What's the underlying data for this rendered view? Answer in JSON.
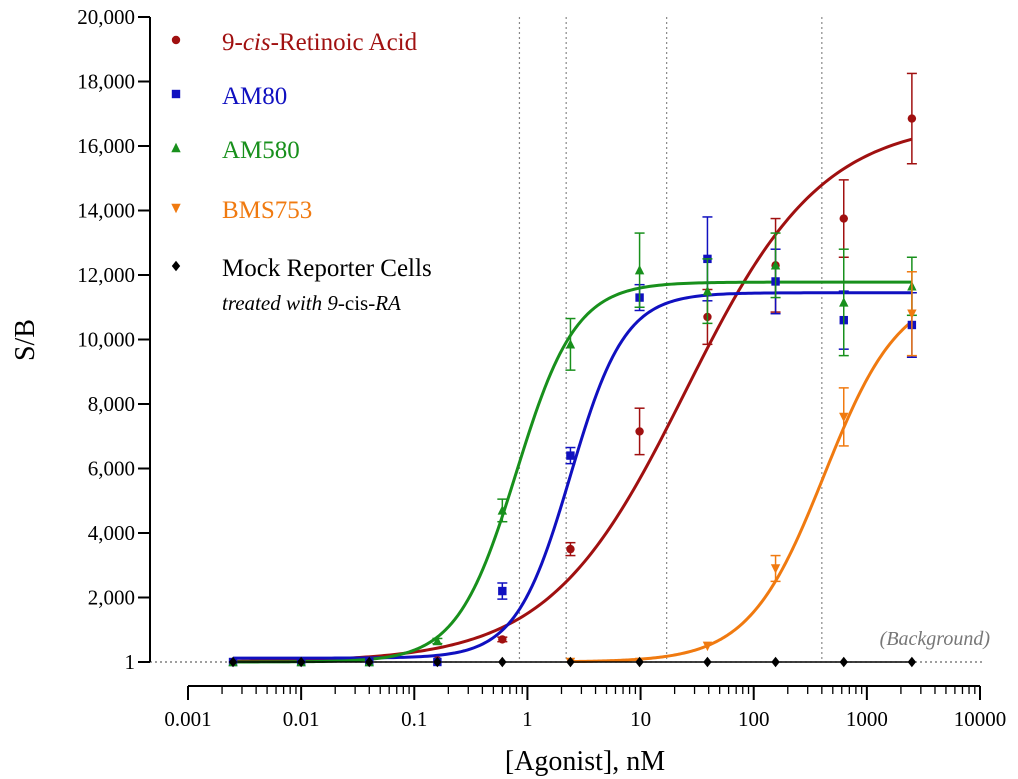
{
  "chart_data": {
    "type": "scatter",
    "xlabel": "[Agonist], nM",
    "ylabel": "S/B",
    "x_scale": "log",
    "xlim": [
      0.001,
      10000
    ],
    "ylim": [
      0,
      20000
    ],
    "x_ticks": [
      {
        "value": 0.001,
        "label": "0.001"
      },
      {
        "value": 0.01,
        "label": "0.01"
      },
      {
        "value": 0.1,
        "label": "0.1"
      },
      {
        "value": 1,
        "label": "1"
      },
      {
        "value": 10,
        "label": "10"
      },
      {
        "value": 100,
        "label": "100"
      },
      {
        "value": 1000,
        "label": "1000"
      },
      {
        "value": 10000,
        "label": "10000"
      }
    ],
    "y_ticks": [
      {
        "value": 0,
        "label": "1"
      },
      {
        "value": 2000,
        "label": "2,000"
      },
      {
        "value": 4000,
        "label": "4,000"
      },
      {
        "value": 6000,
        "label": "6,000"
      },
      {
        "value": 8000,
        "label": "8,000"
      },
      {
        "value": 10000,
        "label": "10,000"
      },
      {
        "value": 12000,
        "label": "12,000"
      },
      {
        "value": 14000,
        "label": "14,000"
      },
      {
        "value": 16000,
        "label": "16,000"
      },
      {
        "value": 18000,
        "label": "18,000"
      },
      {
        "value": 20000,
        "label": "20,000"
      }
    ],
    "background_label": "(Background)",
    "reference_lines_x": [
      0.85,
      2.2,
      17,
      400
    ],
    "legend_position": "top-left",
    "series": [
      {
        "name_parts": [
          {
            "text": "9-",
            "italic": false
          },
          {
            "text": "cis",
            "italic": true
          },
          {
            "text": "-Retinoic Acid",
            "italic": false
          }
        ],
        "color": "#A01010",
        "marker": "circle",
        "x": [
          0.0025,
          0.01,
          0.04,
          0.16,
          0.6,
          2.4,
          9.8,
          39,
          156,
          625,
          2500
        ],
        "y": [
          0,
          0,
          0,
          50,
          700,
          3500,
          7150,
          10700,
          12300,
          13750,
          16850
        ],
        "err": [
          0,
          0,
          0,
          0,
          70,
          200,
          720,
          850,
          1450,
          1200,
          1400
        ],
        "fit": {
          "bottom": 0,
          "top": 16800,
          "ec50": 25,
          "hill": 0.72
        }
      },
      {
        "name_parts": [
          {
            "text": "AM80",
            "italic": false
          }
        ],
        "color": "#1010C0",
        "marker": "square",
        "x": [
          0.0025,
          0.01,
          0.04,
          0.16,
          0.6,
          2.4,
          9.8,
          39,
          156,
          625,
          2500
        ],
        "y": [
          0,
          0,
          0,
          0,
          2200,
          6400,
          11300,
          12500,
          11800,
          10600,
          10450
        ],
        "err": [
          0,
          0,
          0,
          0,
          250,
          250,
          400,
          1300,
          1000,
          900,
          1000
        ],
        "fit": {
          "bottom": 120,
          "top": 11450,
          "ec50": 2.4,
          "hill": 1.8
        }
      },
      {
        "name_parts": [
          {
            "text": "AM580",
            "italic": false
          }
        ],
        "color": "#18901C",
        "marker": "triangle-up",
        "x": [
          0.0025,
          0.01,
          0.04,
          0.16,
          0.6,
          2.4,
          9.8,
          39,
          156,
          625,
          2500
        ],
        "y": [
          0,
          0,
          0,
          650,
          4700,
          9850,
          12150,
          11500,
          12300,
          11150,
          11650
        ],
        "err": [
          0,
          0,
          0,
          80,
          350,
          800,
          1150,
          1000,
          1000,
          1650,
          900
        ],
        "fit": {
          "bottom": 0,
          "top": 11780,
          "ec50": 0.8,
          "hill": 1.65
        }
      },
      {
        "name_parts": [
          {
            "text": "BMS753",
            "italic": false
          }
        ],
        "color": "#F07A10",
        "marker": "triangle-down",
        "x": [
          2.4,
          9.8,
          39,
          156,
          625,
          2500
        ],
        "y": [
          0,
          0,
          500,
          2900,
          7600,
          10800
        ],
        "err": [
          0,
          0,
          0,
          400,
          900,
          1300
        ],
        "fit": {
          "bottom": 0,
          "top": 11600,
          "ec50": 420,
          "hill": 1.3
        }
      },
      {
        "name_parts": [
          {
            "text": "Mock Reporter Cells",
            "italic": false
          }
        ],
        "subtitle_parts": [
          {
            "text": "treated with 9-",
            "italic": true
          },
          {
            "text": "cis",
            "italic": false
          },
          {
            "text": "-RA",
            "italic": true
          }
        ],
        "color": "#000000",
        "marker": "diamond",
        "x": [
          0.0025,
          0.01,
          0.04,
          0.16,
          0.6,
          2.4,
          9.8,
          39,
          156,
          625,
          2500
        ],
        "y": [
          0,
          0,
          0,
          0,
          0,
          0,
          0,
          0,
          0,
          0,
          0
        ],
        "err": [
          0,
          0,
          0,
          0,
          0,
          0,
          0,
          0,
          0,
          0,
          0
        ],
        "fit": {
          "bottom": 0,
          "top": 0,
          "ec50": 1,
          "hill": 1
        }
      }
    ]
  }
}
